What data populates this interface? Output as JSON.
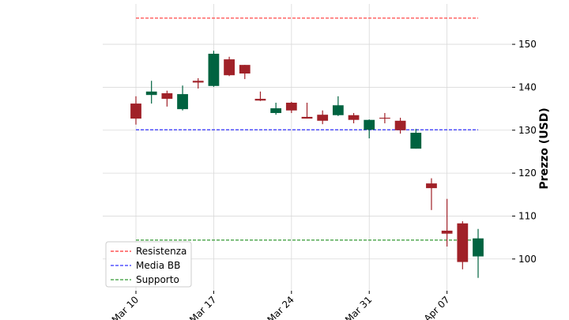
{
  "chart_data": {
    "type": "candlestick",
    "ylabel": "Prezzo (USD)",
    "categories": [
      "Mar 10",
      null,
      null,
      null,
      null,
      "Mar 17",
      null,
      null,
      null,
      null,
      "Mar 24",
      null,
      null,
      null,
      null,
      "Mar 31",
      null,
      null,
      null,
      null,
      "Apr 07",
      null,
      null
    ],
    "open": [
      136.2,
      138.2,
      138.6,
      134.9,
      141.5,
      140.3,
      146.5,
      145.2,
      137.3,
      134.0,
      136.4,
      133.1,
      133.6,
      133.5,
      133.5,
      130.1,
      132.9,
      132.2,
      125.7,
      117.6,
      106.6,
      108.3,
      100.6
    ],
    "high": [
      137.9,
      141.5,
      139.2,
      140.4,
      142.1,
      148.5,
      147.1,
      145.2,
      139.0,
      136.4,
      136.6,
      136.4,
      134.6,
      137.9,
      134.0,
      132.5,
      134.0,
      132.9,
      130.3,
      118.8,
      114.0,
      108.8,
      107.0
    ],
    "low": [
      131.3,
      136.2,
      135.5,
      134.6,
      139.7,
      140.1,
      142.6,
      141.9,
      136.8,
      133.6,
      134.0,
      132.7,
      131.4,
      133.3,
      131.6,
      128.1,
      131.6,
      129.2,
      125.7,
      111.4,
      102.9,
      97.6,
      95.6
    ],
    "close": [
      132.7,
      139.0,
      137.3,
      138.4,
      141.1,
      147.8,
      142.8,
      143.2,
      136.9,
      135.1,
      134.6,
      132.7,
      132.2,
      135.8,
      132.4,
      132.4,
      132.7,
      130.0,
      129.4,
      116.5,
      105.9,
      99.3,
      104.8
    ],
    "up_color": "#006340",
    "down_color": "#a02128",
    "hlines": [
      {
        "name": "Resistenza",
        "value": 156.1,
        "color": "#ff3333"
      },
      {
        "name": "Media BB",
        "value": 130.1,
        "color": "#3333ff"
      },
      {
        "name": "Supporto",
        "value": 104.4,
        "color": "#339933"
      }
    ],
    "ylim": [
      92.6,
      159.4
    ],
    "yticks": [
      100,
      110,
      120,
      130,
      140,
      150
    ],
    "grid": true,
    "legend": "lower left"
  }
}
